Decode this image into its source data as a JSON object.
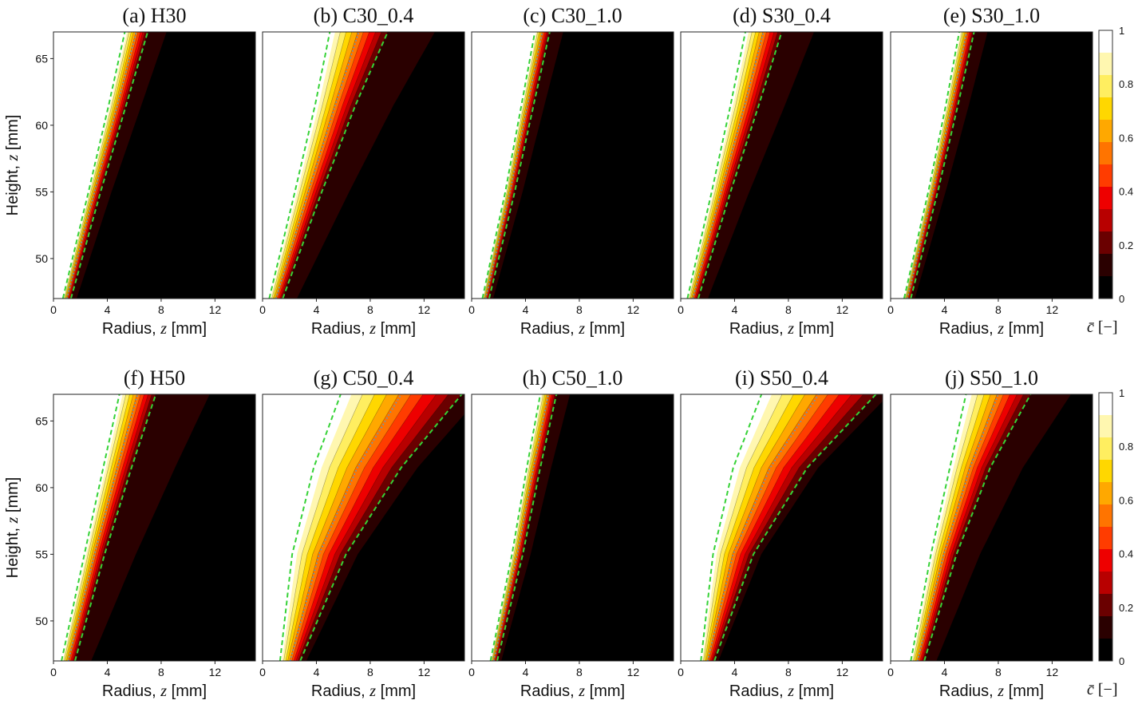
{
  "figure": {
    "colorbar": {
      "ticks": [
        "1",
        "0.8",
        "0.6",
        "0.4",
        "0.2",
        "0"
      ],
      "unit_symbol": "c̄",
      "unit_suffix": "[−]",
      "levels": [
        "#ffffff",
        "#fff7b0",
        "#ffee60",
        "#ffd700",
        "#ffa800",
        "#ff7400",
        "#ff3c00",
        "#ee0000",
        "#b80000",
        "#6a0000",
        "#2a0000",
        "#000000"
      ]
    }
  },
  "chart_data": {
    "type": "heatmap",
    "xlabel": {
      "text": "Radius, ",
      "var": "z",
      "unit": "[mm]"
    },
    "ylabel": {
      "text": "Height, ",
      "var": "z",
      "unit": "[mm]"
    },
    "xlim": [
      0,
      15
    ],
    "ylim": [
      47,
      67
    ],
    "xticks": [
      "0",
      "4",
      "8",
      "12"
    ],
    "yticks": [
      "50",
      "55",
      "60",
      "65"
    ],
    "colorbar_range": [
      0,
      1
    ],
    "panels": [
      {
        "title": "(a) H30",
        "inner_edge": [
          [
            0.7,
            47
          ],
          [
            2.6,
            55
          ],
          [
            4.1,
            61.5
          ],
          [
            5.3,
            67
          ]
        ],
        "spread": [
          0.6,
          0.9,
          1.3,
          1.7
        ],
        "outer_tail": 1.4
      },
      {
        "title": "(b) C30_0.4",
        "inner_edge": [
          [
            0.5,
            47
          ],
          [
            2.4,
            55
          ],
          [
            3.9,
            61.5
          ],
          [
            5.0,
            67
          ]
        ],
        "spread": [
          1.0,
          2.0,
          3.0,
          4.3
        ],
        "outer_tail": 3.5
      },
      {
        "title": "(c) C30_1.0",
        "inner_edge": [
          [
            0.8,
            47
          ],
          [
            2.5,
            55
          ],
          [
            3.7,
            61.5
          ],
          [
            4.7,
            67
          ]
        ],
        "spread": [
          0.5,
          0.7,
          0.9,
          1.1
        ],
        "outer_tail": 1.0
      },
      {
        "title": "(d) S30_0.4",
        "inner_edge": [
          [
            0.5,
            47
          ],
          [
            2.3,
            55
          ],
          [
            3.7,
            61.5
          ],
          [
            4.8,
            67
          ]
        ],
        "spread": [
          0.8,
          1.4,
          2.1,
          2.7
        ],
        "outer_tail": 2.4
      },
      {
        "title": "(e) S30_1.0",
        "inner_edge": [
          [
            1.0,
            47
          ],
          [
            2.8,
            55
          ],
          [
            4.1,
            61.5
          ],
          [
            5.1,
            67
          ]
        ],
        "spread": [
          0.5,
          0.7,
          0.9,
          1.1
        ],
        "outer_tail": 1.0
      },
      {
        "title": "(f) H50",
        "inner_edge": [
          [
            0.6,
            47
          ],
          [
            2.3,
            55
          ],
          [
            3.7,
            61.5
          ],
          [
            4.9,
            67
          ]
        ],
        "spread": [
          1.0,
          1.5,
          2.1,
          2.7
        ],
        "outer_tail": 4.0
      },
      {
        "title": "(g) C50_0.4",
        "inner_edge": [
          [
            1.3,
            47
          ],
          [
            2.2,
            55
          ],
          [
            3.8,
            61.5
          ],
          [
            5.8,
            67
          ]
        ],
        "spread": [
          1.5,
          4.0,
          6.5,
          9.0
        ],
        "outer_tail": 1.5
      },
      {
        "title": "(h) C50_1.0",
        "inner_edge": [
          [
            1.4,
            47
          ],
          [
            3.0,
            55
          ],
          [
            4.1,
            61.5
          ],
          [
            5.1,
            67
          ]
        ],
        "spread": [
          0.5,
          0.8,
          1.0,
          1.2
        ],
        "outer_tail": 1.0
      },
      {
        "title": "(i) S50_0.4",
        "inner_edge": [
          [
            1.5,
            47
          ],
          [
            2.4,
            55
          ],
          [
            3.9,
            61.5
          ],
          [
            6.0,
            67
          ]
        ],
        "spread": [
          1.0,
          3.0,
          5.5,
          8.5
        ],
        "outer_tail": 1.0
      },
      {
        "title": "(j) S50_1.0",
        "inner_edge": [
          [
            1.5,
            47
          ],
          [
            3.0,
            55
          ],
          [
            4.4,
            61.5
          ],
          [
            5.6,
            67
          ]
        ],
        "spread": [
          1.0,
          1.9,
          3.0,
          4.8
        ],
        "outer_tail": 3.0
      }
    ]
  }
}
